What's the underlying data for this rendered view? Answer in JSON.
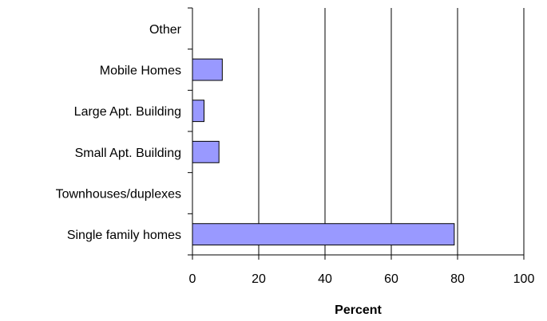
{
  "chart_data": {
    "type": "bar",
    "orientation": "horizontal",
    "categories": [
      "Single family homes",
      "Townhouses/duplexes",
      "Small Apt. Building",
      "Large Apt. Building",
      "Mobile Homes",
      "Other"
    ],
    "values": [
      79,
      0,
      8,
      3.5,
      9,
      0
    ],
    "xlabel": "Percent",
    "ylabel": "",
    "xlim": [
      0,
      100
    ],
    "xticks": [
      0,
      20,
      40,
      60,
      80,
      100
    ],
    "grid": "vertical",
    "bar_color": "#9999ff",
    "bar_edge_color": "#000000"
  }
}
